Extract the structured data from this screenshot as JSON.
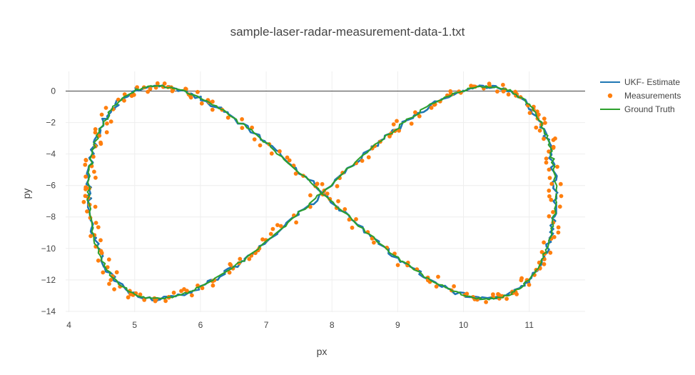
{
  "chart_data": {
    "type": "line",
    "title": "sample-laser-radar-measurement-data-1.txt",
    "xlabel": "px",
    "ylabel": "py",
    "xlim": [
      3.95,
      11.85
    ],
    "ylim": [
      -14.05,
      1.25
    ],
    "x_ticks": [
      4,
      5,
      6,
      7,
      8,
      9,
      10,
      11
    ],
    "y_ticks": [
      0,
      -2,
      -4,
      -6,
      -8,
      -10,
      -12,
      -14
    ],
    "x_tick_labels": [
      "4",
      "5",
      "6",
      "7",
      "8",
      "9",
      "10",
      "11"
    ],
    "y_tick_labels": [
      "0",
      "−2",
      "−4",
      "−6",
      "−8",
      "−10",
      "−12",
      "−14"
    ],
    "grid": true,
    "zero_line": true,
    "legend_position": "top-right",
    "curve_model": {
      "center": [
        7.85,
        -6.45
      ],
      "amp_x": 3.55,
      "amp_y": 6.75,
      "samples": 400
    },
    "series": [
      {
        "name": "UKF- Estimate",
        "mode": "lines",
        "color": "#1f77b4"
      },
      {
        "name": "Measurements",
        "mode": "markers",
        "color": "#ff7f0e"
      },
      {
        "name": "Ground Truth",
        "mode": "lines",
        "color": "#2ca02c"
      }
    ]
  }
}
